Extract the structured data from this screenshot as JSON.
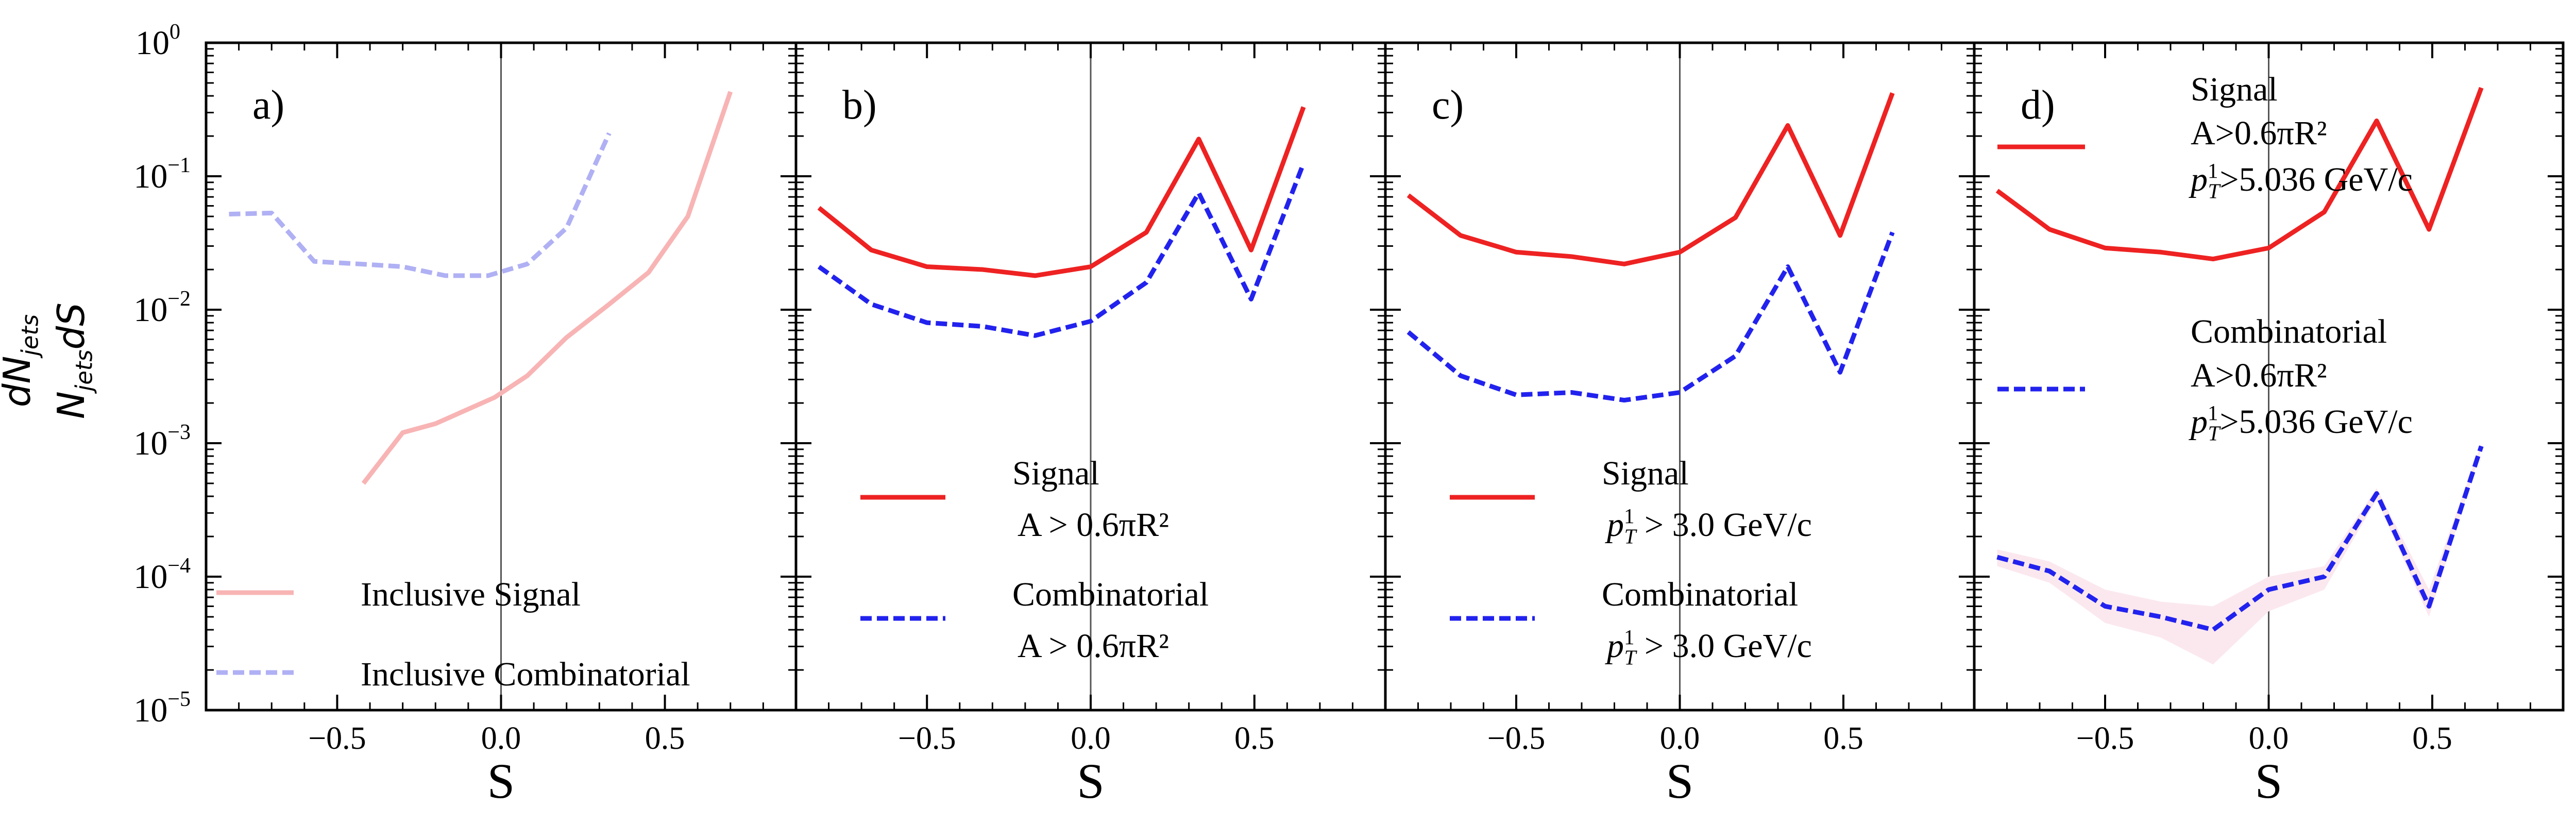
{
  "y_axis_label": {
    "numerator": "dN",
    "numerator_sub": "jets",
    "denominator": "N",
    "denominator_sub": "jets",
    "denominator_tail": "dS"
  },
  "y_tick_labels": [
    {
      "base": "10",
      "exp": "0"
    },
    {
      "base": "10",
      "exp": "−1"
    },
    {
      "base": "10",
      "exp": "−2"
    },
    {
      "base": "10",
      "exp": "−3"
    },
    {
      "base": "10",
      "exp": "−4"
    },
    {
      "base": "10",
      "exp": "−5"
    }
  ],
  "colors": {
    "signal": "#ee2222",
    "combinatorial": "#2222ee",
    "signal_light": "#f8b4b4",
    "combinatorial_light": "#b0b0f4",
    "band": "#fbe8ee"
  },
  "chart_data": [
    {
      "type": "line",
      "panel_label": "a)",
      "xlabel": "S",
      "ylabel": "dN_jets / (N_jets dS)",
      "xlim": [
        -0.9,
        0.9
      ],
      "ylim": [
        1e-05,
        1
      ],
      "yscale": "log",
      "x_ticks": [
        "−0.5",
        "0.0",
        "0.5"
      ],
      "legend_position": "lower-left",
      "series": [
        {
          "name": "Inclusive Signal",
          "style": "solid",
          "color": "#f8b4b4",
          "x": [
            -0.42,
            -0.3,
            -0.2,
            -0.1,
            -0.02,
            0.08,
            0.2,
            0.33,
            0.45,
            0.57,
            0.7
          ],
          "y": [
            0.0005,
            0.0012,
            0.0014,
            0.0018,
            0.0022,
            0.0032,
            0.0062,
            0.011,
            0.019,
            0.05,
            0.43
          ]
        },
        {
          "name": "Inclusive Combinatorial",
          "style": "dashed",
          "color": "#b0b0f4",
          "x": [
            -0.83,
            -0.7,
            -0.57,
            -0.43,
            -0.3,
            -0.17,
            -0.04,
            0.08,
            0.2,
            0.33
          ],
          "y": [
            0.052,
            0.053,
            0.023,
            0.022,
            0.021,
            0.018,
            0.018,
            0.022,
            0.041,
            0.21
          ]
        }
      ]
    },
    {
      "type": "line",
      "panel_label": "b)",
      "xlabel": "S",
      "xlim": [
        -0.9,
        0.9
      ],
      "ylim": [
        1e-05,
        1
      ],
      "yscale": "log",
      "x_ticks": [
        "−0.5",
        "0.0",
        "0.5"
      ],
      "legend_position": "lower-left",
      "series": [
        {
          "name": "Signal",
          "legend_lines": [
            "Signal",
            "A > 0.6πR²"
          ],
          "style": "solid",
          "color": "#ee2222",
          "x": [
            -0.83,
            -0.67,
            -0.5,
            -0.33,
            -0.17,
            0.0,
            0.17,
            0.33,
            0.49,
            0.65
          ],
          "y": [
            0.058,
            0.028,
            0.021,
            0.02,
            0.018,
            0.021,
            0.038,
            0.19,
            0.028,
            0.33
          ]
        },
        {
          "name": "Combinatorial",
          "legend_lines": [
            "Combinatorial",
            "A > 0.6πR²"
          ],
          "style": "dashed",
          "color": "#2222ee",
          "x": [
            -0.83,
            -0.67,
            -0.5,
            -0.33,
            -0.17,
            0.0,
            0.17,
            0.33,
            0.49,
            0.65
          ],
          "y": [
            0.021,
            0.011,
            0.008,
            0.0075,
            0.0064,
            0.0082,
            0.016,
            0.075,
            0.012,
            0.125
          ]
        }
      ]
    },
    {
      "type": "line",
      "panel_label": "c)",
      "xlabel": "S",
      "xlim": [
        -0.9,
        0.9
      ],
      "ylim": [
        1e-05,
        1
      ],
      "yscale": "log",
      "x_ticks": [
        "−0.5",
        "0.0",
        "0.5"
      ],
      "legend_position": "lower-left",
      "series": [
        {
          "name": "Signal",
          "legend_lines": [
            "Signal",
            "p_T^1 > 3.0 GeV/c"
          ],
          "style": "solid",
          "color": "#ee2222",
          "x": [
            -0.83,
            -0.67,
            -0.5,
            -0.33,
            -0.17,
            0.0,
            0.17,
            0.33,
            0.49,
            0.65
          ],
          "y": [
            0.072,
            0.036,
            0.027,
            0.025,
            0.022,
            0.027,
            0.049,
            0.24,
            0.036,
            0.42
          ]
        },
        {
          "name": "Combinatorial",
          "legend_lines": [
            "Combinatorial",
            "p_T^1 > 3.0 GeV/c"
          ],
          "style": "dashed",
          "color": "#2222ee",
          "x": [
            -0.83,
            -0.67,
            -0.5,
            -0.33,
            -0.17,
            0.0,
            0.17,
            0.33,
            0.49,
            0.65
          ],
          "y": [
            0.0068,
            0.0032,
            0.0023,
            0.0024,
            0.0021,
            0.0024,
            0.0045,
            0.021,
            0.0034,
            0.038
          ]
        }
      ]
    },
    {
      "type": "line",
      "panel_label": "d)",
      "xlabel": "S",
      "xlim": [
        -0.9,
        0.9
      ],
      "ylim": [
        1e-05,
        1
      ],
      "yscale": "log",
      "x_ticks": [
        "−0.5",
        "0.0",
        "0.5"
      ],
      "legend_position": "upper-left",
      "series": [
        {
          "name": "Signal",
          "legend_lines": [
            "Signal",
            "A>0.6πR²",
            "p_T^1>5.036 GeV/c"
          ],
          "style": "solid",
          "color": "#ee2222",
          "x": [
            -0.83,
            -0.67,
            -0.5,
            -0.33,
            -0.17,
            0.0,
            0.17,
            0.33,
            0.49,
            0.65
          ],
          "y": [
            0.078,
            0.04,
            0.029,
            0.027,
            0.024,
            0.029,
            0.054,
            0.26,
            0.04,
            0.46
          ]
        },
        {
          "name": "Combinatorial",
          "legend_lines": [
            "Combinatorial",
            "A>0.6πR²",
            "p_T^1>5.036 GeV/c"
          ],
          "style": "dashed",
          "color": "#2222ee",
          "x": [
            -0.83,
            -0.67,
            -0.5,
            -0.33,
            -0.17,
            0.0,
            0.17,
            0.33,
            0.49,
            0.65
          ],
          "y": [
            0.00014,
            0.00011,
            6e-05,
            5e-05,
            4e-05,
            8e-05,
            0.0001,
            0.00042,
            6e-05,
            0.00095
          ],
          "band_low": [
            0.00012,
            9e-05,
            4.5e-05,
            3.5e-05,
            2.2e-05,
            5.5e-05,
            8e-05,
            0.00038,
            5e-05,
            0.0009
          ],
          "band_high": [
            0.00016,
            0.00013,
            8e-05,
            6.5e-05,
            6e-05,
            0.0001,
            0.00012,
            0.00046,
            8e-05,
            0.001
          ]
        }
      ]
    }
  ]
}
